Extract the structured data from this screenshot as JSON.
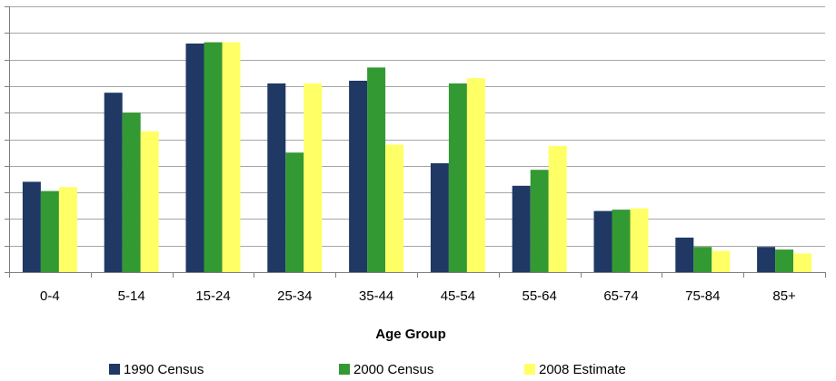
{
  "chart_data": {
    "type": "bar",
    "title": "",
    "xlabel": "Age Group",
    "ylabel": "",
    "categories": [
      "0-4",
      "5-14",
      "15-24",
      "25-34",
      "35-44",
      "45-54",
      "55-64",
      "65-74",
      "75-84",
      "85+"
    ],
    "series": [
      {
        "name": "1990 Census",
        "color": "#1F3864",
        "values": [
          3.4,
          6.75,
          8.6,
          7.1,
          7.2,
          4.1,
          3.25,
          2.3,
          1.3,
          0.95
        ]
      },
      {
        "name": "2000 Census",
        "color": "#339933",
        "values": [
          3.05,
          6.0,
          8.65,
          4.5,
          7.7,
          7.1,
          3.85,
          2.35,
          0.95,
          0.85
        ]
      },
      {
        "name": "2008 Estimate",
        "color": "#FFFF66",
        "values": [
          3.2,
          5.3,
          8.65,
          7.1,
          4.8,
          7.3,
          4.75,
          2.4,
          0.8,
          0.7
        ]
      }
    ],
    "ylim": [
      0,
      10
    ],
    "ytick_count": 10,
    "y_tick_labels_visible": false,
    "grid": true,
    "legend_position": "bottom"
  }
}
